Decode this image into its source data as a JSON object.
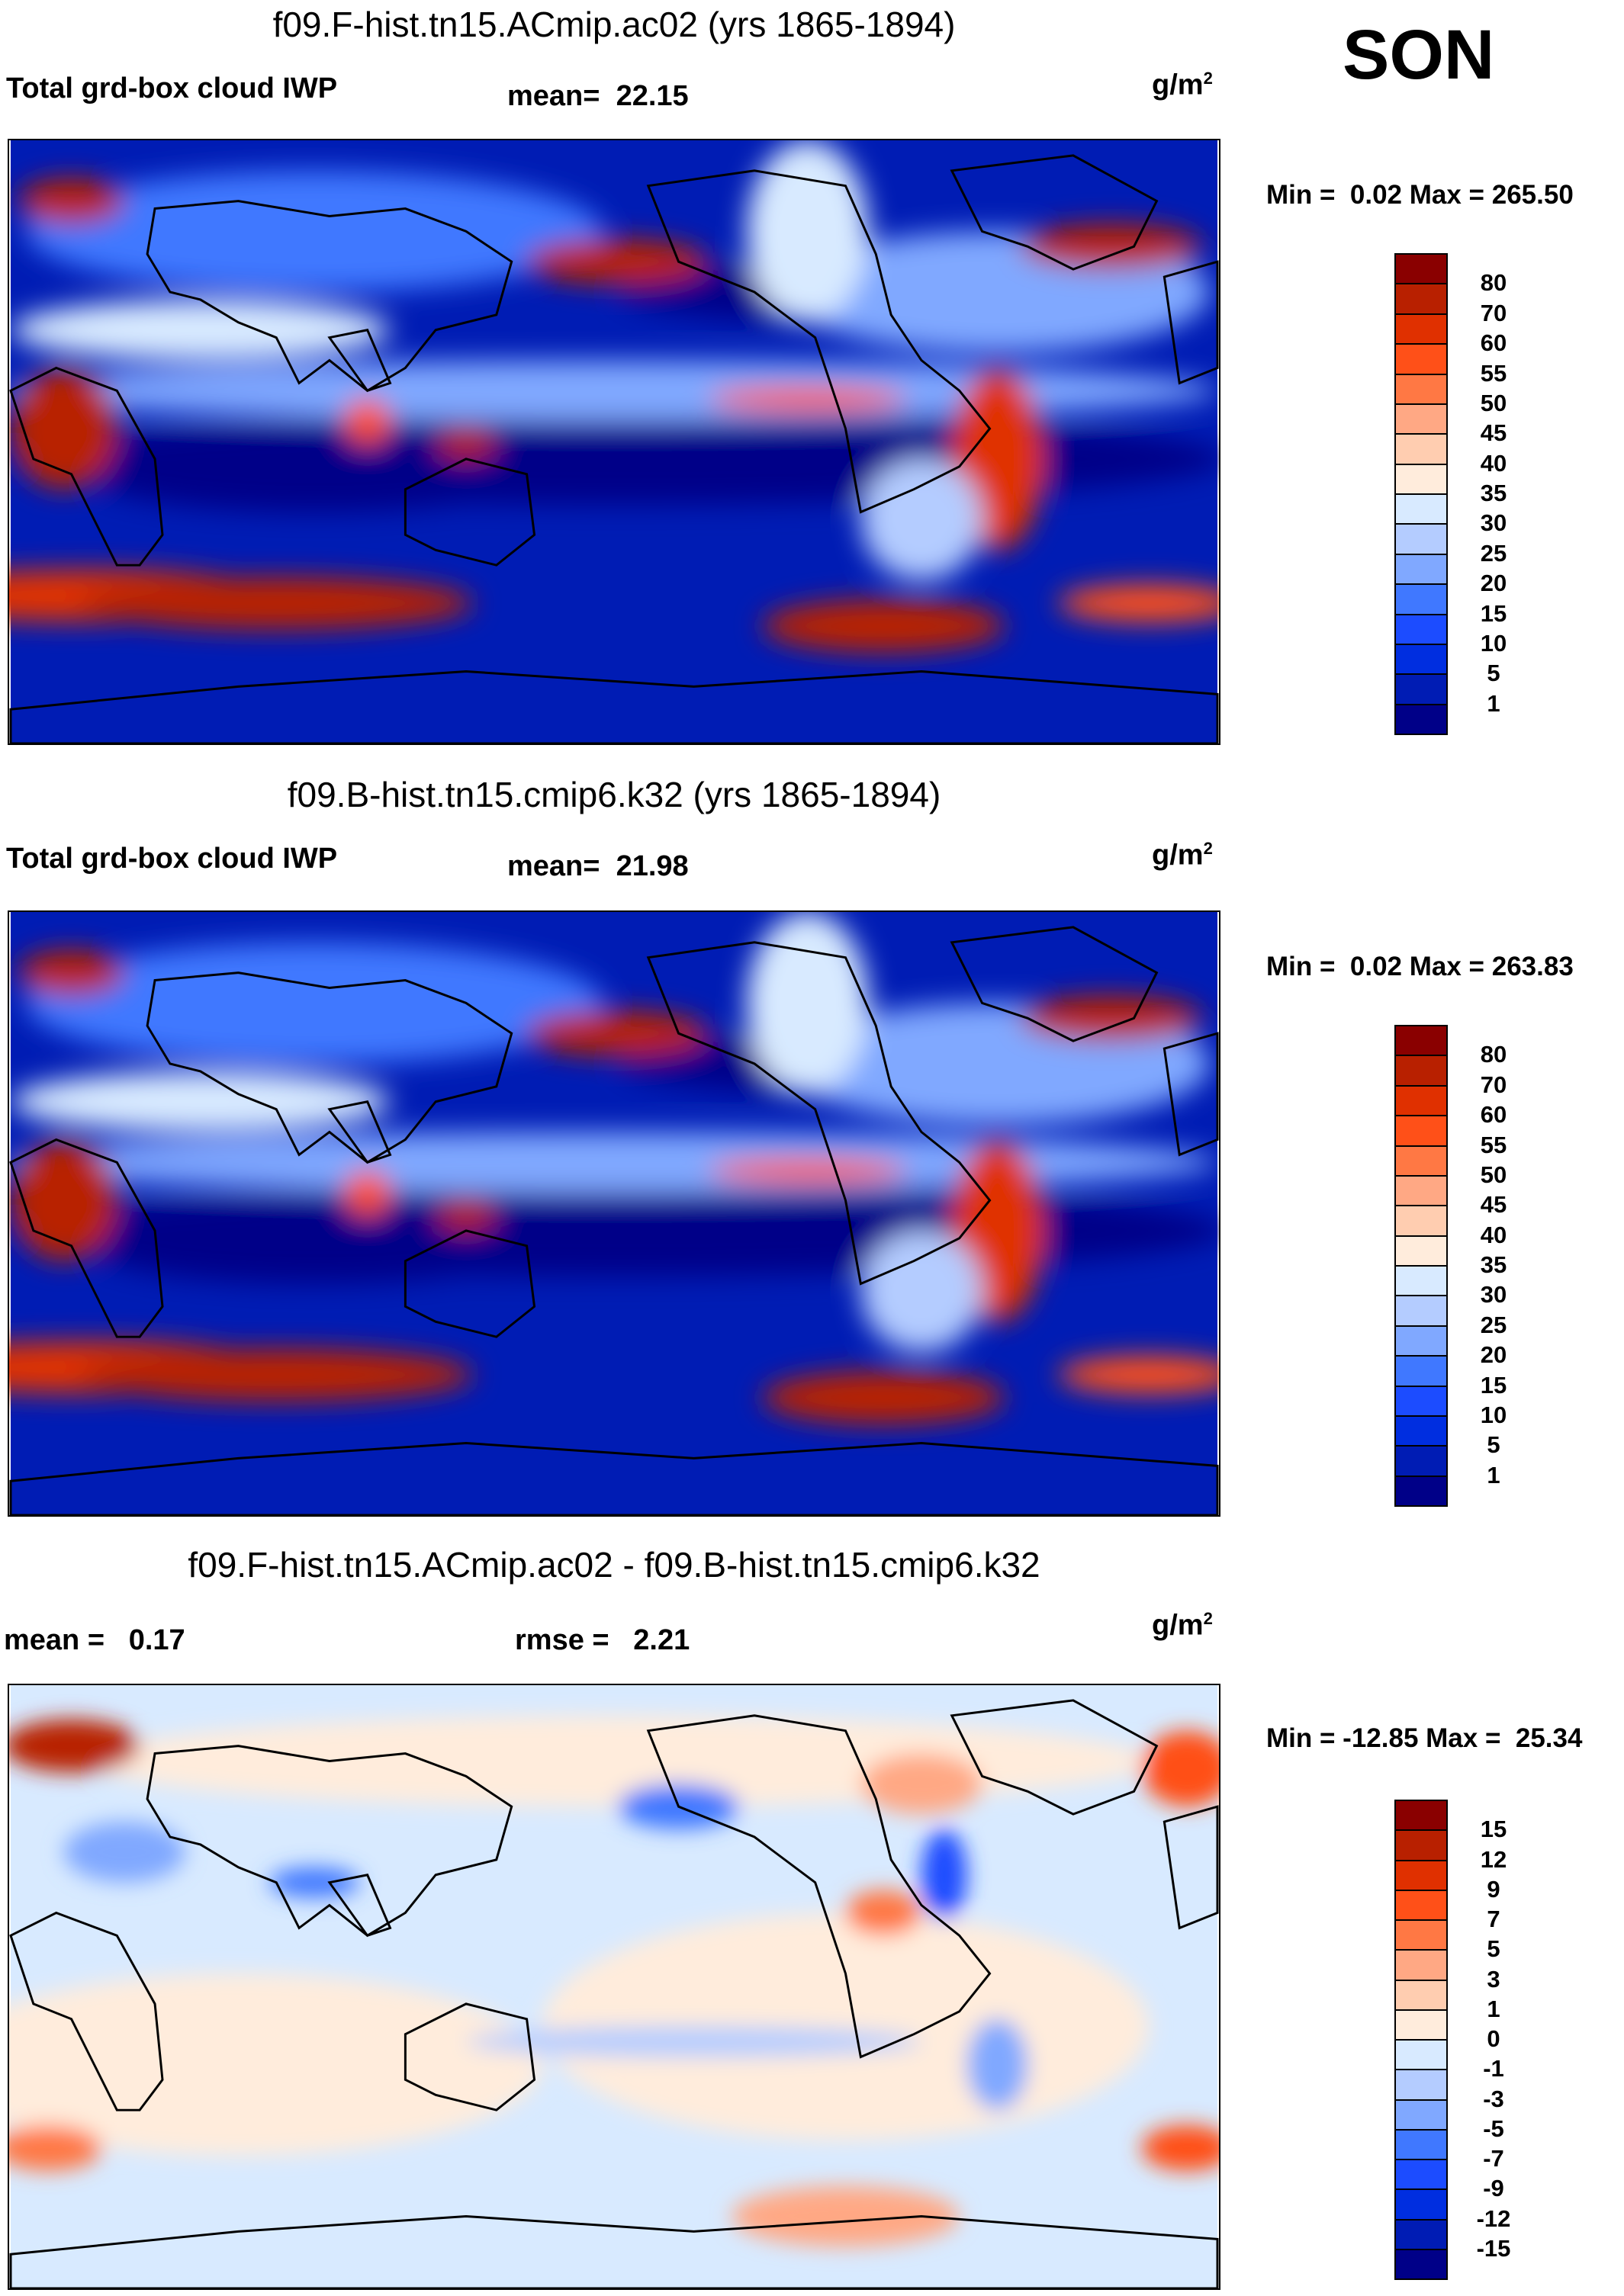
{
  "season": "SON",
  "units_base": "g/m",
  "units_exp": "2",
  "chart_data": [
    {
      "type": "heatmap",
      "title": "f09.F-hist.tn15.ACmip.ac02 (yrs 1865-1894)",
      "variable": "Total grd-box cloud IWP",
      "mean_label": "mean=",
      "mean": "22.15",
      "min_label": "Min =",
      "min": "0.02",
      "max_label": "Max =",
      "max": "265.50",
      "colorbar_levels": [
        "80",
        "70",
        "60",
        "55",
        "50",
        "45",
        "40",
        "35",
        "30",
        "25",
        "20",
        "15",
        "10",
        "5",
        "1"
      ]
    },
    {
      "type": "heatmap",
      "title": "f09.B-hist.tn15.cmip6.k32 (yrs 1865-1894)",
      "variable": "Total grd-box cloud IWP",
      "mean_label": "mean=",
      "mean": "21.98",
      "min_label": "Min =",
      "min": "0.02",
      "max_label": "Max =",
      "max": "263.83",
      "colorbar_levels": [
        "80",
        "70",
        "60",
        "55",
        "50",
        "45",
        "40",
        "35",
        "30",
        "25",
        "20",
        "15",
        "10",
        "5",
        "1"
      ]
    },
    {
      "type": "heatmap",
      "title": "f09.F-hist.tn15.ACmip.ac02 - f09.B-hist.tn15.cmip6.k32",
      "mean_label": "mean =",
      "mean": "0.17",
      "rmse_label": "rmse =",
      "rmse": "2.21",
      "min_label": "Min =",
      "min": "-12.85",
      "max_label": "Max =",
      "max": "25.34",
      "colorbar_levels": [
        "15",
        "12",
        "9",
        "7",
        "5",
        "3",
        "1",
        "0",
        "-1",
        "-3",
        "-5",
        "-7",
        "-9",
        "-12",
        "-15"
      ]
    }
  ],
  "colors": [
    "#8a0000",
    "#b82000",
    "#e03000",
    "#ff5018",
    "#ff7844",
    "#ffa884",
    "#ffcdb0",
    "#ffecdc",
    "#d8eaff",
    "#b4ccff",
    "#80a8ff",
    "#4078ff",
    "#1c4cff",
    "#002ee0",
    "#001cb4",
    "#000088"
  ]
}
